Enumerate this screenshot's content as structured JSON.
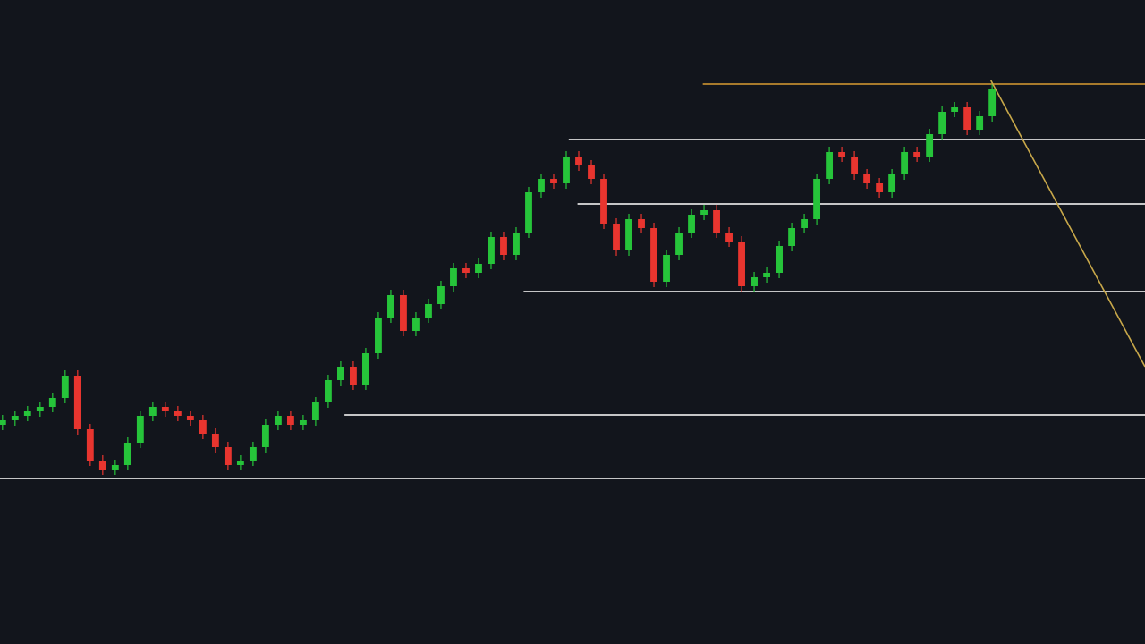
{
  "chart_data": {
    "type": "candlestick",
    "background": "#12151c",
    "up_color": "#26c43a",
    "down_color": "#e8352f",
    "xlim": [
      -0.2,
      91.2
    ],
    "ylim": [
      0,
      720
    ],
    "open": [
      245,
      250,
      255,
      260,
      265,
      275,
      300,
      240,
      205,
      195,
      200,
      225,
      255,
      265,
      260,
      255,
      250,
      235,
      220,
      200,
      205,
      220,
      245,
      255,
      245,
      250,
      270,
      295,
      310,
      290,
      325,
      365,
      390,
      350,
      365,
      380,
      400,
      420,
      415,
      425,
      455,
      435,
      460,
      505,
      520,
      515,
      545,
      535,
      520,
      470,
      440,
      475,
      465,
      405,
      435,
      460,
      480,
      485,
      460,
      450,
      400,
      410,
      415,
      445,
      465,
      475,
      520,
      550,
      545,
      525,
      515,
      505,
      525,
      550,
      545,
      570,
      595,
      600,
      575,
      590
    ],
    "high": [
      256,
      261,
      266,
      271,
      281,
      306,
      306,
      246,
      211,
      206,
      231,
      261,
      271,
      271,
      266,
      261,
      256,
      241,
      226,
      211,
      226,
      251,
      261,
      261,
      256,
      276,
      301,
      316,
      316,
      331,
      371,
      396,
      396,
      371,
      386,
      406,
      426,
      426,
      431,
      461,
      461,
      466,
      511,
      526,
      526,
      551,
      551,
      541,
      526,
      476,
      481,
      481,
      471,
      441,
      466,
      486,
      491,
      491,
      466,
      456,
      416,
      421,
      451,
      471,
      481,
      526,
      556,
      556,
      551,
      531,
      521,
      531,
      556,
      556,
      576,
      601,
      606,
      606,
      596,
      626
    ],
    "low": [
      239,
      244,
      249,
      254,
      259,
      269,
      234,
      199,
      189,
      189,
      194,
      219,
      249,
      254,
      249,
      244,
      229,
      214,
      194,
      194,
      199,
      214,
      239,
      239,
      239,
      244,
      264,
      289,
      284,
      284,
      319,
      359,
      344,
      344,
      359,
      374,
      394,
      409,
      409,
      419,
      429,
      429,
      454,
      499,
      509,
      509,
      529,
      514,
      464,
      434,
      434,
      459,
      399,
      399,
      429,
      454,
      474,
      454,
      444,
      394,
      394,
      404,
      409,
      439,
      459,
      469,
      514,
      539,
      519,
      509,
      499,
      499,
      519,
      539,
      539,
      564,
      589,
      569,
      569,
      584
    ],
    "close": [
      250,
      255,
      260,
      265,
      275,
      300,
      240,
      205,
      195,
      200,
      225,
      255,
      265,
      260,
      255,
      250,
      235,
      220,
      200,
      205,
      220,
      245,
      255,
      245,
      250,
      270,
      295,
      310,
      290,
      325,
      365,
      390,
      350,
      365,
      380,
      400,
      420,
      415,
      425,
      455,
      435,
      460,
      505,
      520,
      515,
      545,
      535,
      520,
      470,
      440,
      475,
      465,
      405,
      435,
      460,
      480,
      485,
      460,
      450,
      400,
      410,
      415,
      445,
      465,
      475,
      520,
      550,
      545,
      525,
      515,
      505,
      525,
      550,
      545,
      570,
      595,
      600,
      575,
      590,
      620
    ],
    "levels": [
      {
        "value": 185,
        "start": -0.2,
        "color": "#d9d9d9"
      },
      {
        "value": 256,
        "start": 27.3,
        "color": "#d9d9d9"
      },
      {
        "value": 394,
        "start": 41.6,
        "color": "#d9d9d9"
      },
      {
        "value": 492,
        "start": 45.9,
        "color": "#d9d9d9"
      },
      {
        "value": 564,
        "start": 45.2,
        "color": "#d9d9d9"
      },
      {
        "value": 626,
        "start": 55.9,
        "color": "#b8862e"
      }
    ],
    "trendline": {
      "x": [
        78.9,
        91.2
      ],
      "y": [
        630,
        310
      ],
      "color": "#c8a84a"
    }
  }
}
